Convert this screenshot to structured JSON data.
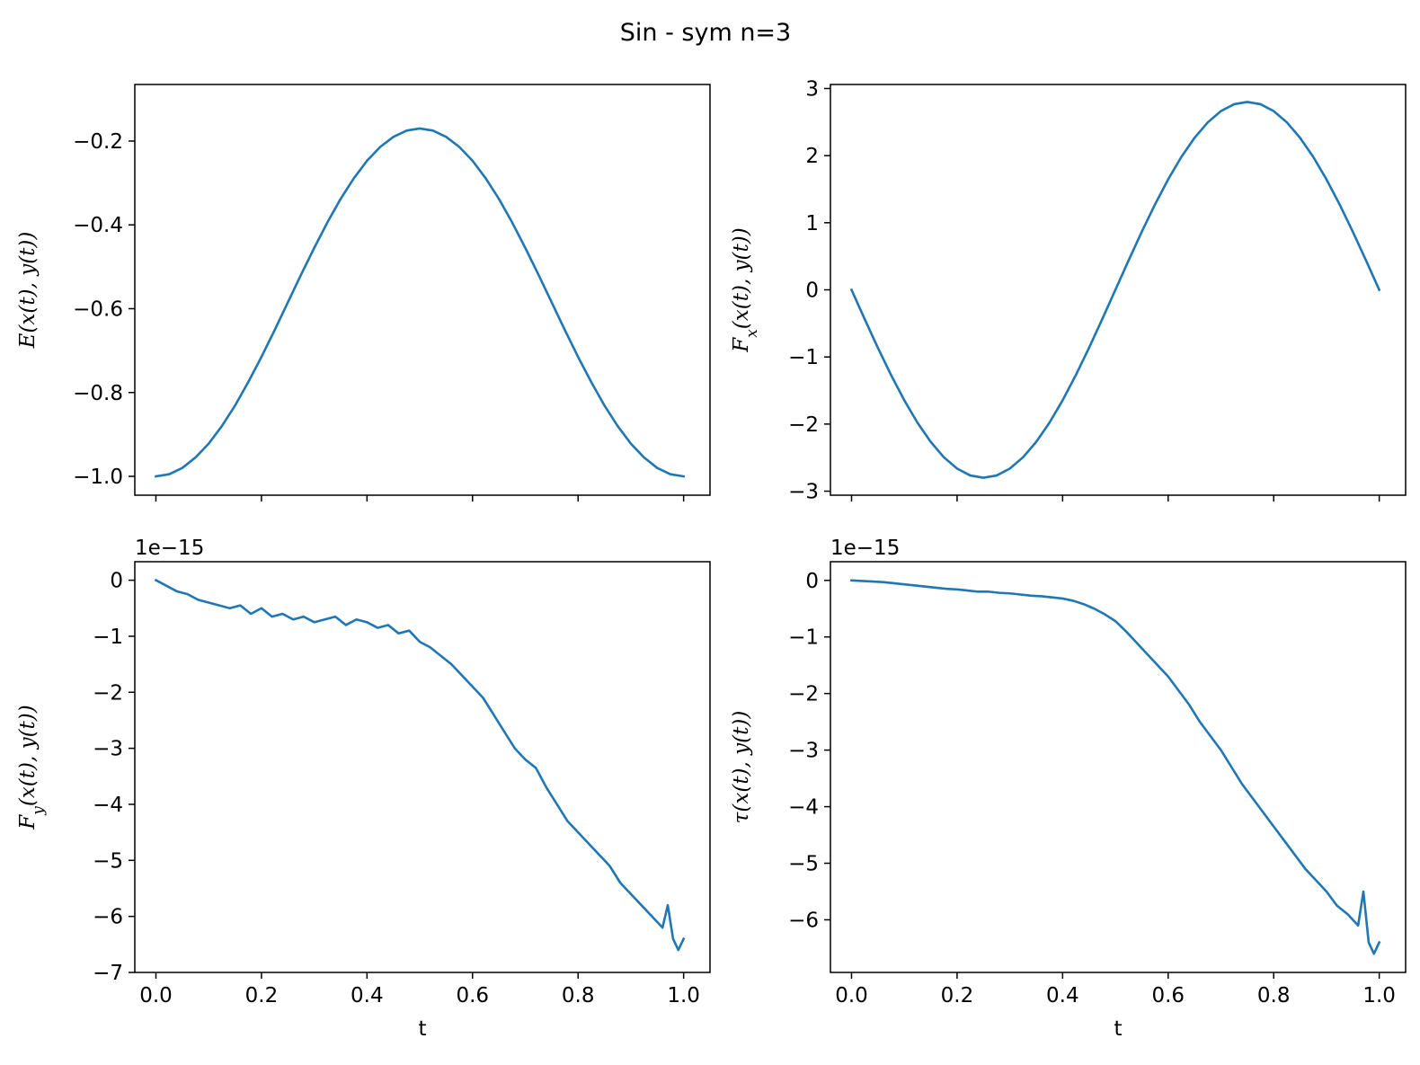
{
  "figure": {
    "title": "Sin - sym n=3",
    "line_color": "#1f77b4"
  },
  "chart_data": [
    {
      "id": "energy",
      "type": "line",
      "title": "",
      "xlabel": "",
      "ylabel": "E(x(t), y(t))",
      "xlim": [
        -0.04,
        1.05
      ],
      "ylim": [
        -1.045,
        -0.065
      ],
      "x_ticks": [
        0.0,
        0.2,
        0.4,
        0.6,
        0.8,
        1.0
      ],
      "x_tick_labels": [],
      "y_ticks": [
        -1.0,
        -0.8,
        -0.6,
        -0.4,
        -0.2
      ],
      "y_tick_labels": [
        "−1.0",
        "−0.8",
        "−0.6",
        "−0.4",
        "−0.2"
      ],
      "offset_label": "",
      "series": [
        {
          "x": [
            0.0,
            0.025,
            0.05,
            0.075,
            0.1,
            0.125,
            0.15,
            0.175,
            0.2,
            0.225,
            0.25,
            0.275,
            0.3,
            0.325,
            0.35,
            0.375,
            0.4,
            0.425,
            0.45,
            0.475,
            0.5,
            0.525,
            0.55,
            0.575,
            0.6,
            0.625,
            0.65,
            0.675,
            0.7,
            0.725,
            0.75,
            0.775,
            0.8,
            0.825,
            0.85,
            0.875,
            0.9,
            0.925,
            0.95,
            0.975,
            1.0
          ],
          "y": [
            -1.0,
            -0.995,
            -0.98,
            -0.955,
            -0.922,
            -0.88,
            -0.831,
            -0.775,
            -0.715,
            -0.651,
            -0.585,
            -0.519,
            -0.455,
            -0.394,
            -0.338,
            -0.289,
            -0.247,
            -0.214,
            -0.19,
            -0.175,
            -0.17,
            -0.175,
            -0.19,
            -0.214,
            -0.247,
            -0.289,
            -0.338,
            -0.394,
            -0.455,
            -0.519,
            -0.585,
            -0.651,
            -0.715,
            -0.775,
            -0.831,
            -0.88,
            -0.922,
            -0.955,
            -0.98,
            -0.995,
            -1.0
          ]
        }
      ]
    },
    {
      "id": "force-x",
      "type": "line",
      "title": "",
      "xlabel": "",
      "ylabel": "F_x(x(t), y(t))",
      "xlim": [
        -0.04,
        1.05
      ],
      "ylim": [
        -3.06,
        3.06
      ],
      "x_ticks": [
        0.0,
        0.2,
        0.4,
        0.6,
        0.8,
        1.0
      ],
      "x_tick_labels": [],
      "y_ticks": [
        -3,
        -2,
        -1,
        0,
        1,
        2,
        3
      ],
      "y_tick_labels": [
        "−3",
        "−2",
        "−1",
        "0",
        "1",
        "2",
        "3"
      ],
      "offset_label": "",
      "series": [
        {
          "x": [
            0.0,
            0.025,
            0.05,
            0.075,
            0.1,
            0.125,
            0.15,
            0.175,
            0.2,
            0.225,
            0.25,
            0.275,
            0.3,
            0.325,
            0.35,
            0.375,
            0.4,
            0.425,
            0.45,
            0.475,
            0.5,
            0.525,
            0.55,
            0.575,
            0.6,
            0.625,
            0.65,
            0.675,
            0.7,
            0.725,
            0.75,
            0.775,
            0.8,
            0.825,
            0.85,
            0.875,
            0.9,
            0.925,
            0.95,
            0.975,
            1.0
          ],
          "y": [
            0.0,
            -0.438,
            -0.865,
            -1.271,
            -1.646,
            -1.98,
            -2.265,
            -2.495,
            -2.663,
            -2.766,
            -2.8,
            -2.766,
            -2.663,
            -2.495,
            -2.265,
            -1.98,
            -1.646,
            -1.271,
            -0.865,
            -0.438,
            0.0,
            0.438,
            0.865,
            1.271,
            1.646,
            1.98,
            2.265,
            2.495,
            2.663,
            2.766,
            2.8,
            2.766,
            2.663,
            2.495,
            2.265,
            1.98,
            1.646,
            1.271,
            0.865,
            0.438,
            0.0
          ]
        }
      ]
    },
    {
      "id": "force-y",
      "type": "line",
      "title": "",
      "xlabel": "t",
      "ylabel": "F_y(x(t), y(t))",
      "xlim": [
        -0.04,
        1.05
      ],
      "ylim": [
        -7.0,
        0.33
      ],
      "x_ticks": [
        0.0,
        0.2,
        0.4,
        0.6,
        0.8,
        1.0
      ],
      "x_tick_labels": [
        "0.0",
        "0.2",
        "0.4",
        "0.6",
        "0.8",
        "1.0"
      ],
      "y_ticks": [
        -7,
        -6,
        -5,
        -4,
        -3,
        -2,
        -1,
        0
      ],
      "y_tick_labels": [
        "−7",
        "−6",
        "−5",
        "−4",
        "−3",
        "−2",
        "−1",
        "0"
      ],
      "offset_label": "1e−15",
      "series": [
        {
          "x": [
            0.0,
            0.02,
            0.04,
            0.06,
            0.08,
            0.1,
            0.12,
            0.14,
            0.16,
            0.18,
            0.2,
            0.22,
            0.24,
            0.26,
            0.28,
            0.3,
            0.32,
            0.34,
            0.36,
            0.38,
            0.4,
            0.42,
            0.44,
            0.46,
            0.48,
            0.5,
            0.52,
            0.54,
            0.56,
            0.58,
            0.6,
            0.62,
            0.64,
            0.66,
            0.68,
            0.7,
            0.72,
            0.74,
            0.76,
            0.78,
            0.8,
            0.82,
            0.84,
            0.86,
            0.88,
            0.9,
            0.92,
            0.94,
            0.96,
            0.97,
            0.98,
            0.99,
            1.0
          ],
          "y": [
            0.0,
            -0.1,
            -0.2,
            -0.25,
            -0.35,
            -0.4,
            -0.45,
            -0.5,
            -0.45,
            -0.6,
            -0.5,
            -0.65,
            -0.6,
            -0.7,
            -0.65,
            -0.75,
            -0.7,
            -0.65,
            -0.8,
            -0.7,
            -0.75,
            -0.85,
            -0.8,
            -0.95,
            -0.9,
            -1.1,
            -1.2,
            -1.35,
            -1.5,
            -1.7,
            -1.9,
            -2.1,
            -2.4,
            -2.7,
            -3.0,
            -3.2,
            -3.35,
            -3.7,
            -4.0,
            -4.3,
            -4.5,
            -4.7,
            -4.9,
            -5.1,
            -5.4,
            -5.6,
            -5.8,
            -6.0,
            -6.2,
            -5.8,
            -6.4,
            -6.6,
            -6.4
          ]
        }
      ]
    },
    {
      "id": "torque",
      "type": "line",
      "title": "",
      "xlabel": "t",
      "ylabel": "τ(x(t), y(t))",
      "xlim": [
        -0.04,
        1.05
      ],
      "ylim": [
        -6.93,
        0.33
      ],
      "x_ticks": [
        0.0,
        0.2,
        0.4,
        0.6,
        0.8,
        1.0
      ],
      "x_tick_labels": [
        "0.0",
        "0.2",
        "0.4",
        "0.6",
        "0.8",
        "1.0"
      ],
      "y_ticks": [
        -6,
        -5,
        -4,
        -3,
        -2,
        -1,
        0
      ],
      "y_tick_labels": [
        "−6",
        "−5",
        "−4",
        "−3",
        "−2",
        "−1",
        "0"
      ],
      "offset_label": "1e−15",
      "series": [
        {
          "x": [
            0.0,
            0.02,
            0.04,
            0.06,
            0.08,
            0.1,
            0.12,
            0.14,
            0.16,
            0.18,
            0.2,
            0.22,
            0.24,
            0.26,
            0.28,
            0.3,
            0.32,
            0.34,
            0.36,
            0.38,
            0.4,
            0.42,
            0.44,
            0.46,
            0.48,
            0.5,
            0.52,
            0.54,
            0.56,
            0.58,
            0.6,
            0.62,
            0.64,
            0.66,
            0.68,
            0.7,
            0.72,
            0.74,
            0.76,
            0.78,
            0.8,
            0.82,
            0.84,
            0.86,
            0.88,
            0.9,
            0.92,
            0.94,
            0.96,
            0.97,
            0.98,
            0.99,
            1.0
          ],
          "y": [
            0.0,
            -0.01,
            -0.02,
            -0.03,
            -0.05,
            -0.07,
            -0.09,
            -0.11,
            -0.13,
            -0.15,
            -0.16,
            -0.18,
            -0.2,
            -0.2,
            -0.22,
            -0.23,
            -0.25,
            -0.27,
            -0.28,
            -0.3,
            -0.32,
            -0.36,
            -0.42,
            -0.5,
            -0.6,
            -0.72,
            -0.9,
            -1.1,
            -1.3,
            -1.5,
            -1.7,
            -1.95,
            -2.2,
            -2.5,
            -2.75,
            -3.0,
            -3.3,
            -3.6,
            -3.85,
            -4.1,
            -4.35,
            -4.6,
            -4.85,
            -5.1,
            -5.3,
            -5.5,
            -5.75,
            -5.9,
            -6.1,
            -5.5,
            -6.4,
            -6.6,
            -6.4
          ]
        }
      ]
    }
  ]
}
